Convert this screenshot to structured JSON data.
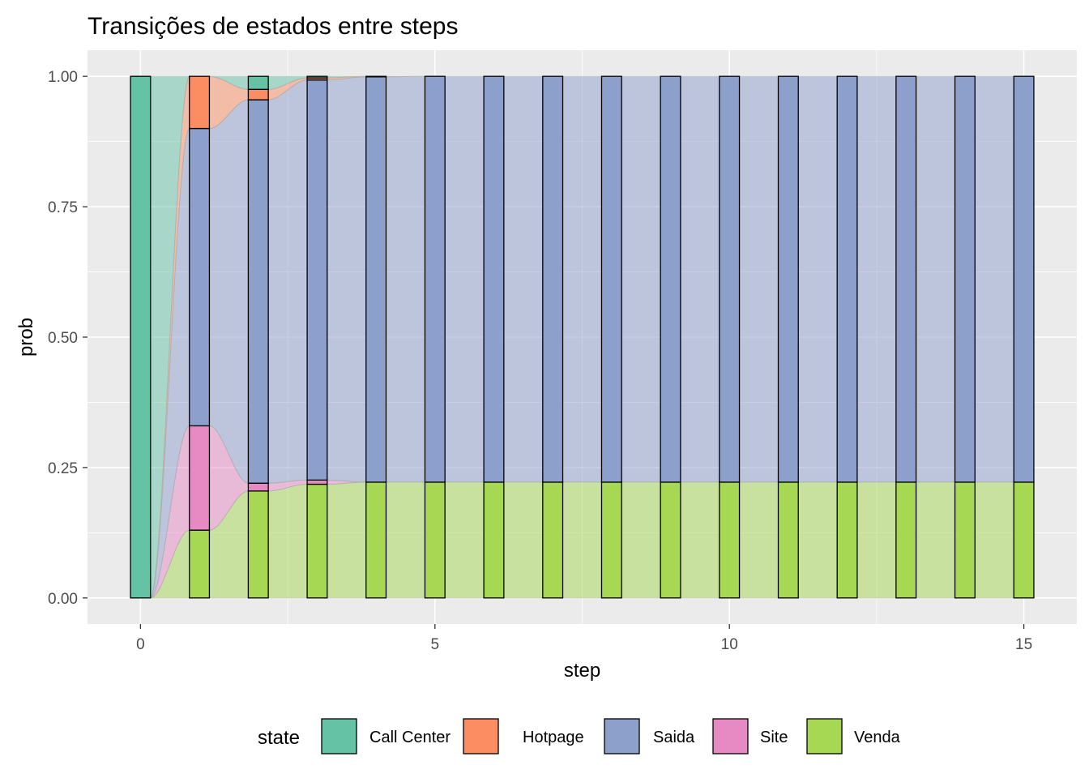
{
  "chart_data": {
    "type": "bar",
    "variant": "alluvial / stacked bar with flows",
    "title": "Transições de estados entre steps",
    "xlabel": "step",
    "ylabel": "prob",
    "xlim": [
      -0.9,
      15.9
    ],
    "ylim": [
      -0.05,
      1.05
    ],
    "x_ticks": [
      0,
      5,
      10,
      15
    ],
    "x_tick_labels": [
      "0",
      "5",
      "10",
      "15"
    ],
    "y_ticks": [
      0,
      0.25,
      0.5,
      0.75,
      1.0
    ],
    "y_tick_labels": [
      "0.00",
      "0.25",
      "0.50",
      "0.75",
      "1.00"
    ],
    "grid": true,
    "legend_position": "bottom",
    "legend_title": "state",
    "categories": [
      "0",
      "1",
      "2",
      "3",
      "4",
      "5",
      "6",
      "7",
      "8",
      "9",
      "10",
      "11",
      "12",
      "13",
      "14",
      "15"
    ],
    "stack_order_bottom_to_top": [
      "Venda",
      "Site",
      "Saida",
      "Hotpage",
      "Call Center"
    ],
    "series": [
      {
        "name": "Call Center",
        "color": "#66C2A5",
        "values": [
          1.0,
          0.0,
          0.025,
          0.003,
          0.0,
          0,
          0,
          0,
          0,
          0,
          0,
          0,
          0,
          0,
          0,
          0
        ]
      },
      {
        "name": "Hotpage",
        "color": "#FC8D62",
        "values": [
          0.0,
          0.1,
          0.02,
          0.004,
          0.001,
          0,
          0,
          0,
          0,
          0,
          0,
          0,
          0,
          0,
          0,
          0
        ]
      },
      {
        "name": "Saida",
        "color": "#8DA0CB",
        "values": [
          0.0,
          0.57,
          0.735,
          0.767,
          0.777,
          0.778,
          0.778,
          0.778,
          0.778,
          0.778,
          0.778,
          0.778,
          0.778,
          0.778,
          0.778,
          0.778
        ]
      },
      {
        "name": "Site",
        "color": "#E78AC3",
        "values": [
          0.0,
          0.2,
          0.015,
          0.008,
          0.0,
          0,
          0,
          0,
          0,
          0,
          0,
          0,
          0,
          0,
          0,
          0
        ]
      },
      {
        "name": "Venda",
        "color": "#A6D854",
        "values": [
          0.0,
          0.13,
          0.205,
          0.218,
          0.222,
          0.222,
          0.222,
          0.222,
          0.222,
          0.222,
          0.222,
          0.222,
          0.222,
          0.222,
          0.222,
          0.222
        ]
      }
    ]
  }
}
